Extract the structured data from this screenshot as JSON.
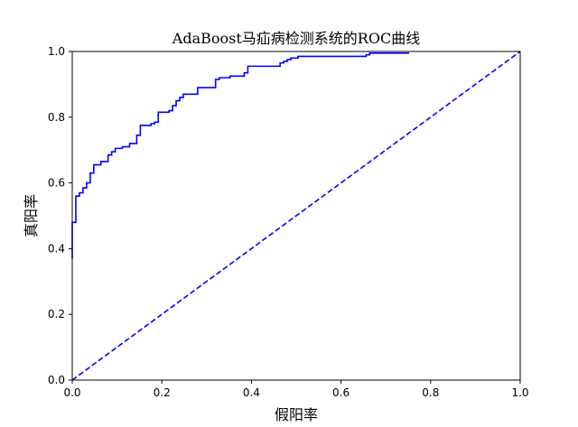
{
  "chart_data": {
    "type": "line",
    "title": "AdaBoost马疝病检测系统的ROC曲线",
    "xlabel": "假阳率",
    "ylabel": "真阳率",
    "xlim": [
      0,
      1
    ],
    "ylim": [
      0,
      1
    ],
    "xticks": [
      "0.0",
      "0.2",
      "0.4",
      "0.6",
      "0.8",
      "1.0"
    ],
    "yticks": [
      "0.0",
      "0.2",
      "0.4",
      "0.6",
      "0.8",
      "1.0"
    ],
    "grid": false,
    "colors": {
      "curve": "#0000ff",
      "diagonal": "#0000ff",
      "axes": "#000000"
    },
    "series": [
      {
        "style": "solid-step",
        "x": [
          0.0,
          0.0,
          0.008,
          0.008,
          0.016,
          0.016,
          0.024,
          0.024,
          0.032,
          0.032,
          0.04,
          0.04,
          0.048,
          0.048,
          0.064,
          0.064,
          0.08,
          0.08,
          0.088,
          0.088,
          0.096,
          0.096,
          0.112,
          0.112,
          0.128,
          0.128,
          0.144,
          0.144,
          0.152,
          0.152,
          0.176,
          0.176,
          0.184,
          0.184,
          0.192,
          0.192,
          0.216,
          0.216,
          0.224,
          0.224,
          0.232,
          0.232,
          0.24,
          0.24,
          0.248,
          0.248,
          0.28,
          0.28,
          0.32,
          0.32,
          0.328,
          0.328,
          0.352,
          0.352,
          0.384,
          0.384,
          0.392,
          0.392,
          0.464,
          0.464,
          0.472,
          0.472,
          0.48,
          0.48,
          0.488,
          0.488,
          0.504,
          0.504,
          0.536,
          0.536,
          0.656,
          0.656,
          0.664,
          0.664,
          0.672,
          0.672,
          0.752
        ],
        "y": [
          0.37,
          0.48,
          0.48,
          0.56,
          0.56,
          0.57,
          0.57,
          0.585,
          0.585,
          0.6,
          0.6,
          0.63,
          0.63,
          0.655,
          0.655,
          0.665,
          0.665,
          0.685,
          0.685,
          0.695,
          0.695,
          0.705,
          0.705,
          0.71,
          0.71,
          0.72,
          0.72,
          0.745,
          0.745,
          0.775,
          0.775,
          0.78,
          0.78,
          0.785,
          0.785,
          0.815,
          0.815,
          0.82,
          0.82,
          0.835,
          0.835,
          0.85,
          0.85,
          0.86,
          0.86,
          0.87,
          0.87,
          0.89,
          0.89,
          0.915,
          0.915,
          0.92,
          0.92,
          0.925,
          0.925,
          0.935,
          0.935,
          0.955,
          0.955,
          0.965,
          0.965,
          0.97,
          0.97,
          0.975,
          0.975,
          0.98,
          0.98,
          0.985,
          0.985,
          0.985,
          0.985,
          0.99,
          0.99,
          0.995,
          0.995,
          0.995,
          0.995
        ]
      },
      {
        "style": "dashed",
        "x": [
          0,
          1
        ],
        "y": [
          0,
          1
        ]
      }
    ]
  }
}
